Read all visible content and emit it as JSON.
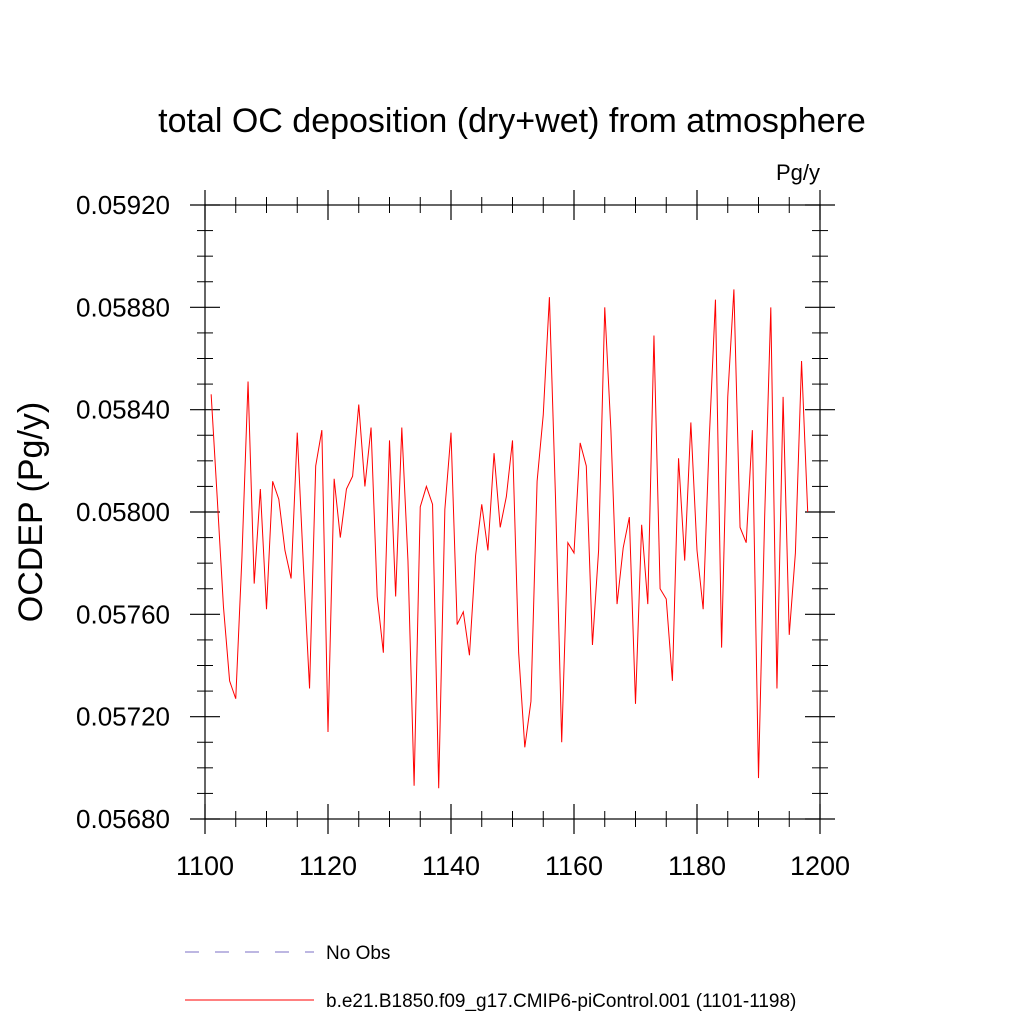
{
  "chart_data": {
    "type": "line",
    "title": "total OC deposition (dry+wet) from atmosphere",
    "units_label": "Pg/y",
    "ylabel": "OCDEP  (Pg/y)",
    "xlabel": "",
    "xlim": [
      1100,
      1200
    ],
    "ylim": [
      0.0568,
      0.0592
    ],
    "x_ticks": [
      1100,
      1120,
      1140,
      1160,
      1180,
      1200
    ],
    "x_tick_labels": [
      "1100",
      "1120",
      "1140",
      "1160",
      "1180",
      "1200"
    ],
    "y_ticks": [
      0.0568,
      0.0572,
      0.0576,
      0.058,
      0.0584,
      0.0588,
      0.0592
    ],
    "y_tick_labels": [
      "0.05680",
      "0.05720",
      "0.05760",
      "0.05800",
      "0.05840",
      "0.05880",
      "0.05920"
    ],
    "x_minor_step": 5,
    "y_minor_step": 0.0001,
    "grid": false,
    "legend_position": "bottom-left",
    "series": [
      {
        "name": "No Obs",
        "color": "#7b6fc4",
        "style": "dashed",
        "x": [],
        "y": []
      },
      {
        "name": "b.e21.B1850.f09_g17.CMIP6-piControl.001 (1101-1198)",
        "color": "#ff0000",
        "style": "solid",
        "x": [
          1101,
          1102,
          1103,
          1104,
          1105,
          1106,
          1107,
          1108,
          1109,
          1110,
          1111,
          1112,
          1113,
          1114,
          1115,
          1116,
          1117,
          1118,
          1119,
          1120,
          1121,
          1122,
          1123,
          1124,
          1125,
          1126,
          1127,
          1128,
          1129,
          1130,
          1131,
          1132,
          1133,
          1134,
          1135,
          1136,
          1137,
          1138,
          1139,
          1140,
          1141,
          1142,
          1143,
          1144,
          1145,
          1146,
          1147,
          1148,
          1149,
          1150,
          1151,
          1152,
          1153,
          1154,
          1155,
          1156,
          1157,
          1158,
          1159,
          1160,
          1161,
          1162,
          1163,
          1164,
          1165,
          1166,
          1167,
          1168,
          1169,
          1170,
          1171,
          1172,
          1173,
          1174,
          1175,
          1176,
          1177,
          1178,
          1179,
          1180,
          1181,
          1182,
          1183,
          1184,
          1185,
          1186,
          1187,
          1188,
          1189,
          1190,
          1191,
          1192,
          1193,
          1194,
          1195,
          1196,
          1197,
          1198
        ],
        "y": [
          0.05846,
          0.05805,
          0.05763,
          0.05734,
          0.05727,
          0.05782,
          0.05851,
          0.05772,
          0.05809,
          0.05762,
          0.05812,
          0.05805,
          0.05785,
          0.05774,
          0.05831,
          0.05779,
          0.05731,
          0.05818,
          0.05832,
          0.05714,
          0.05813,
          0.0579,
          0.05809,
          0.05814,
          0.05842,
          0.0581,
          0.05833,
          0.05767,
          0.05745,
          0.05828,
          0.05767,
          0.05833,
          0.05781,
          0.05693,
          0.05802,
          0.0581,
          0.05803,
          0.05692,
          0.05801,
          0.05831,
          0.05756,
          0.05761,
          0.05744,
          0.05783,
          0.05803,
          0.05785,
          0.05823,
          0.05794,
          0.05806,
          0.05828,
          0.05745,
          0.05708,
          0.05726,
          0.05812,
          0.05838,
          0.05884,
          0.05805,
          0.0571,
          0.05788,
          0.05784,
          0.05827,
          0.05818,
          0.05748,
          0.05785,
          0.0588,
          0.05832,
          0.05764,
          0.05786,
          0.05798,
          0.05725,
          0.05795,
          0.05764,
          0.05869,
          0.0577,
          0.05766,
          0.05734,
          0.05821,
          0.05781,
          0.05835,
          0.05785,
          0.05762,
          0.05829,
          0.05883,
          0.05747,
          0.05845,
          0.05887,
          0.05794,
          0.05788,
          0.05832,
          0.05696,
          0.05798,
          0.0588,
          0.05731,
          0.05845,
          0.05752,
          0.05784,
          0.05859,
          0.058
        ]
      }
    ]
  }
}
